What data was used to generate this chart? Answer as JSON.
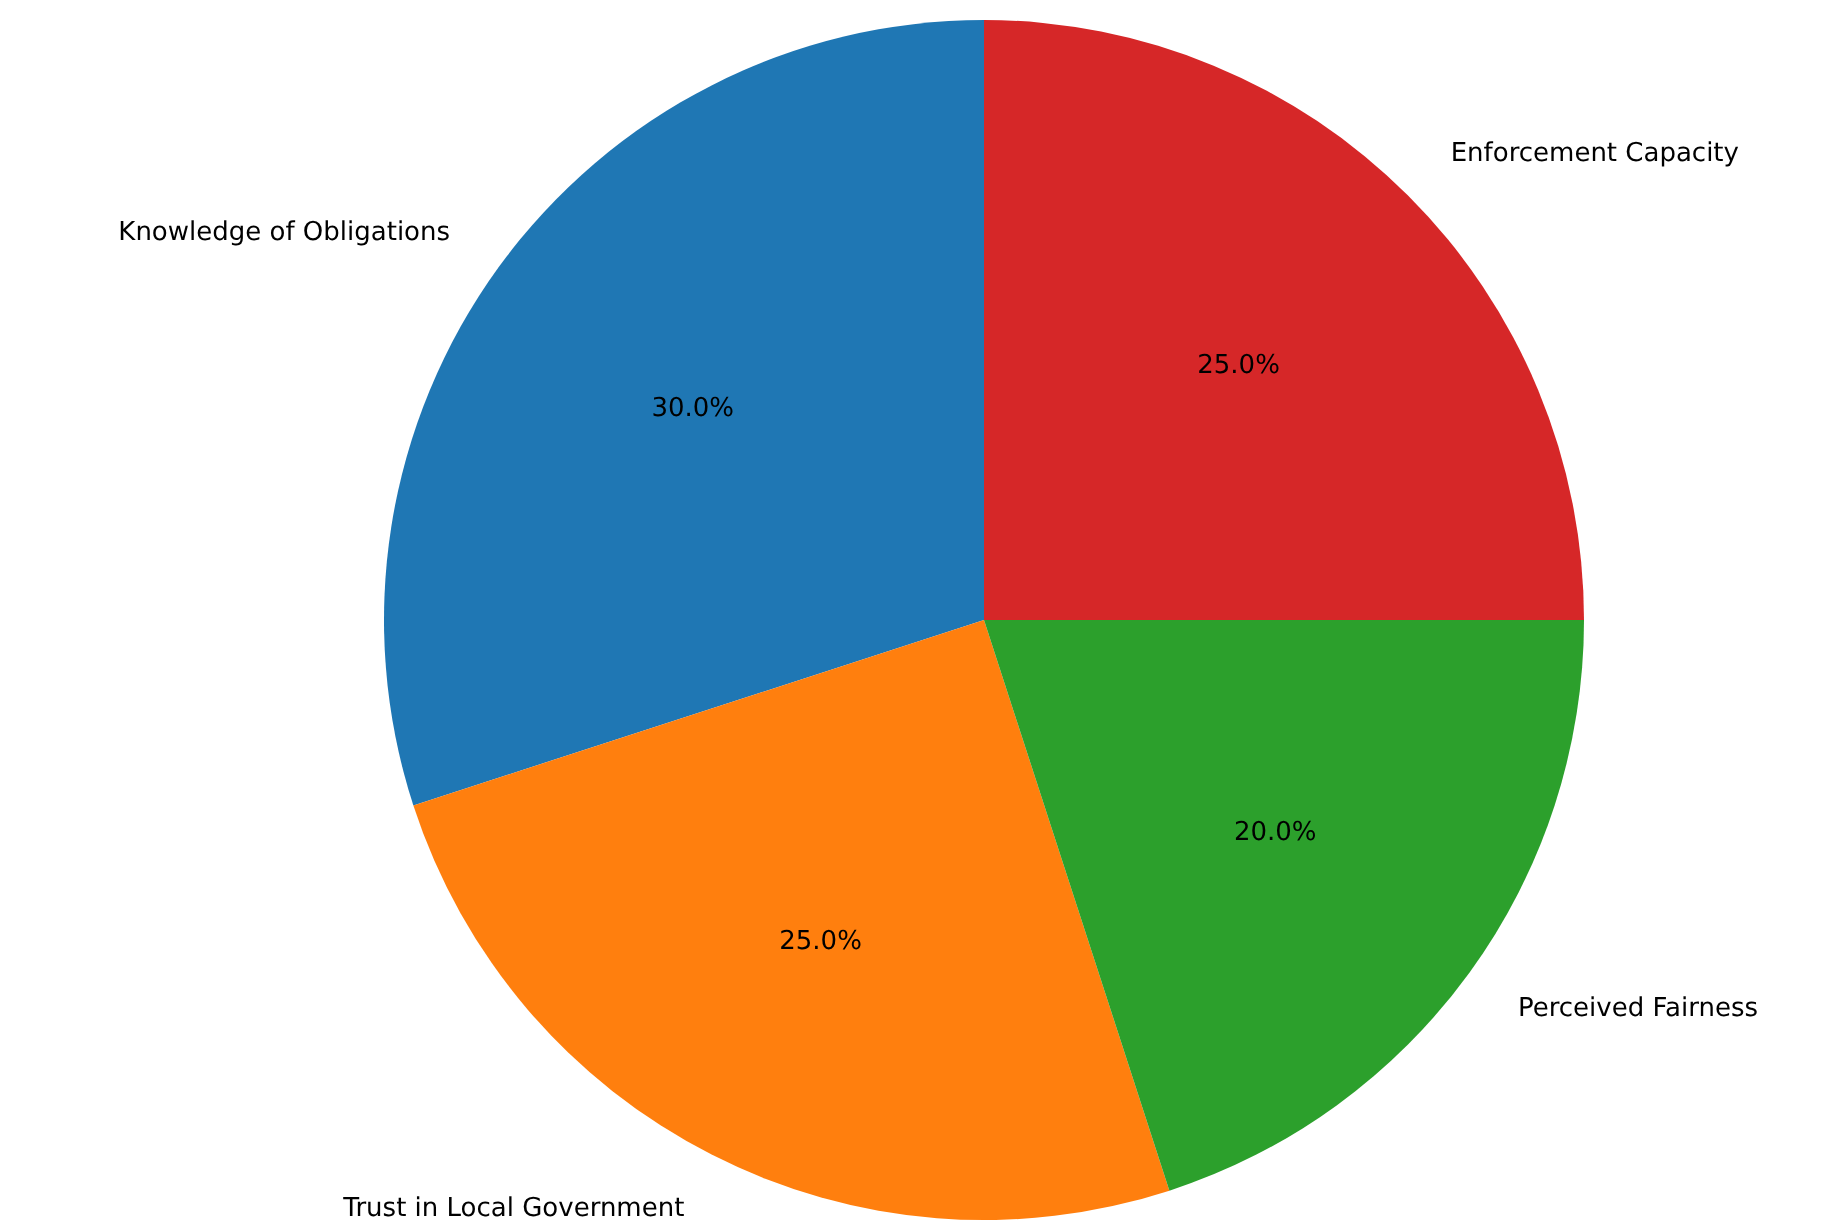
{
  "chart_data": {
    "type": "pie",
    "categories": [
      "Knowledge of Obligations",
      "Trust in Local Government",
      "Perceived Fairness",
      "Enforcement Capacity"
    ],
    "values": [
      30,
      25,
      20,
      25
    ],
    "colors": [
      "#1f77b4",
      "#ff7f0e",
      "#2ca02c",
      "#d62728"
    ],
    "value_labels": [
      "30.0%",
      "25.0%",
      "20.0%",
      "25.0%"
    ]
  }
}
